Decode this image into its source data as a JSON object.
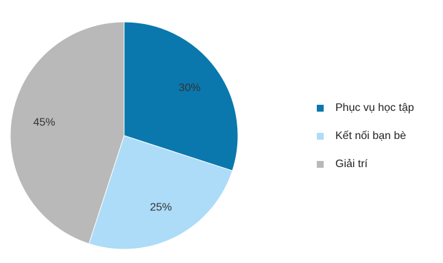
{
  "chart_data": {
    "type": "pie",
    "title": "",
    "legend_position": "right",
    "start_angle_deg": 0,
    "direction": "clockwise",
    "slices": [
      {
        "label": "Phục vụ học tập",
        "value": 30,
        "value_label": "30%",
        "color": "#0a78ad"
      },
      {
        "label": "Kết nối bạn bè",
        "value": 25,
        "value_label": "25%",
        "color": "#acdcf7"
      },
      {
        "label": "Giải trí",
        "value": 45,
        "value_label": "45%",
        "color": "#b9b9b9"
      }
    ]
  }
}
